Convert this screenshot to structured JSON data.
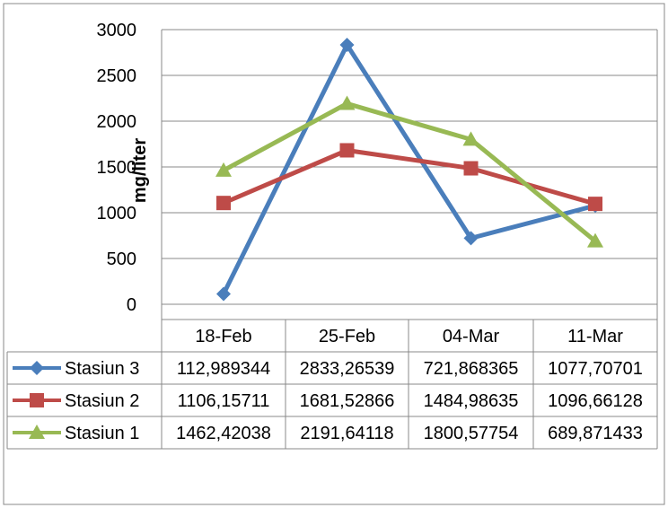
{
  "chart_data": {
    "type": "line",
    "title": "",
    "xlabel": "",
    "ylabel": "mg/liter",
    "ylim": [
      0,
      3000
    ],
    "yticks": [
      "0",
      "500",
      "1000",
      "1500",
      "2000",
      "2500",
      "3000"
    ],
    "categories": [
      "18-Feb",
      "25-Feb",
      "04-Mar",
      "11-Mar"
    ],
    "grid": true,
    "legend": "data-table",
    "series": [
      {
        "name": "Stasiun 3",
        "color": "#4a7ebb",
        "marker": "diamond",
        "values": [
          112.989344,
          2833.26539,
          721.868365,
          1077.70701
        ],
        "labels": [
          "112,989344",
          "2833,26539",
          "721,868365",
          "1077,70701"
        ]
      },
      {
        "name": "Stasiun 2",
        "color": "#be4b48",
        "marker": "square",
        "values": [
          1106.15711,
          1681.52866,
          1484.98635,
          1096.66128
        ],
        "labels": [
          "1106,15711",
          "1681,52866",
          "1484,98635",
          "1096,66128"
        ]
      },
      {
        "name": "Stasiun 1",
        "color": "#98b954",
        "marker": "triangle",
        "values": [
          1462.42038,
          2191.64118,
          1800.57754,
          689.871433
        ],
        "labels": [
          "1462,42038",
          "2191,64118",
          "1800,57754",
          "689,871433"
        ]
      }
    ]
  }
}
